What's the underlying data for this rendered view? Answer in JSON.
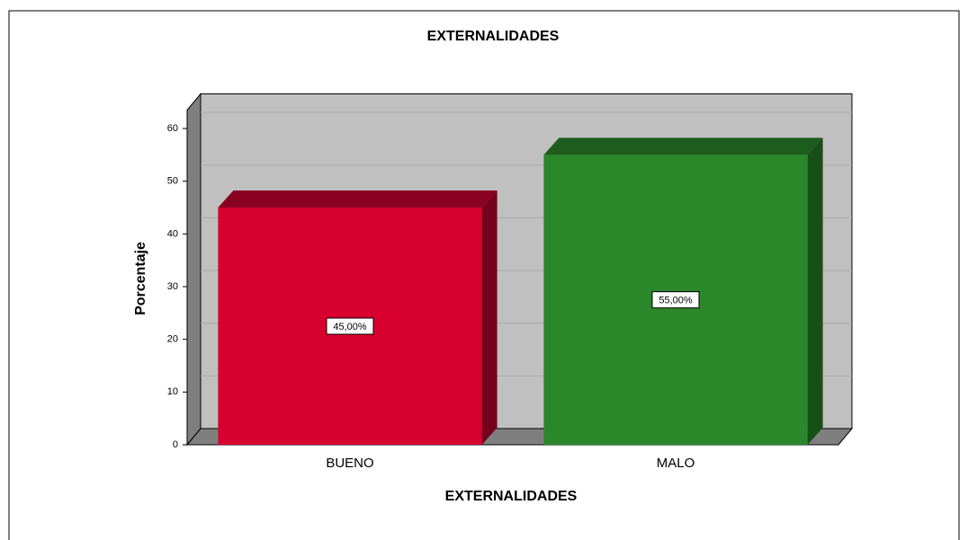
{
  "chart_data": {
    "type": "bar3d",
    "title": "EXTERNALIDADES",
    "x_label": "EXTERNALIDADES",
    "y_label": "Porcentaje",
    "categories": [
      "BUENO",
      "MALO"
    ],
    "values": [
      45,
      55
    ],
    "value_labels": [
      "45,00%",
      "55,00%"
    ],
    "colors": [
      "#d7002f",
      "#2a872a"
    ],
    "top_colors": [
      "#8a0021",
      "#1d5c1d"
    ],
    "side_colors": [
      "#74001b",
      "#174f17"
    ],
    "ylim": [
      0,
      63.5
    ],
    "yticks": [
      0,
      10,
      20,
      30,
      40,
      50,
      60
    ],
    "grid": true
  }
}
